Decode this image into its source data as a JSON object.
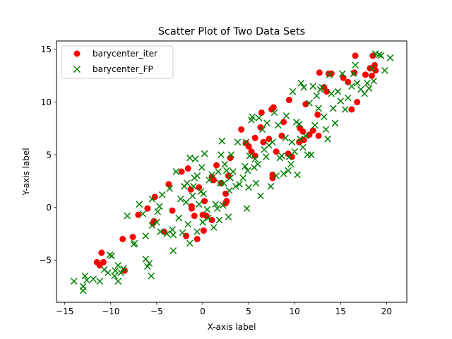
{
  "chart_data": {
    "type": "scatter",
    "title": "Scatter Plot of Two Data Sets",
    "xlabel": "X-axis label",
    "ylabel": "Y-axis label",
    "xlim": [
      -15.9,
      22.2
    ],
    "ylim": [
      -9.0,
      15.8
    ],
    "xticks": [
      -15,
      -10,
      -5,
      0,
      5,
      10,
      15,
      20
    ],
    "yticks": [
      -5,
      0,
      5,
      10,
      15
    ],
    "ytick_labels": [
      "−5",
      "0",
      "5",
      "10",
      "15"
    ],
    "xtick_labels": [
      "−15",
      "−10",
      "−5",
      "0",
      "5",
      "10",
      "15",
      "20"
    ],
    "grid": false,
    "legend_position": "upper-left",
    "series": [
      {
        "name": "barycenter_iter",
        "marker": "circle",
        "color": "#ff0000",
        "points": [
          [
            -11.0,
            -4.3
          ],
          [
            -11.5,
            -5.2
          ],
          [
            -11.2,
            -5.5
          ],
          [
            -10.8,
            -5.2
          ],
          [
            -8.5,
            -6.0
          ],
          [
            -8.7,
            -3.0
          ],
          [
            -7.6,
            -2.8
          ],
          [
            -6.0,
            -0.1
          ],
          [
            -7.0,
            -0.7
          ],
          [
            -5.4,
            -1.5
          ],
          [
            -5.3,
            -1.3
          ],
          [
            -5.2,
            1.0
          ],
          [
            -4.2,
            -2.3
          ],
          [
            -3.7,
            2.2
          ],
          [
            -3.3,
            -0.3
          ],
          [
            -2.3,
            3.4
          ],
          [
            -1.8,
            -2.7
          ],
          [
            -1.6,
            3.7
          ],
          [
            -1.2,
            0.1
          ],
          [
            -1.2,
            -0.1
          ],
          [
            -0.9,
            -0.8
          ],
          [
            -0.6,
            -3.0
          ],
          [
            -1.3,
            1.7
          ],
          [
            -0.4,
            1.9
          ],
          [
            0.0,
            -0.7
          ],
          [
            0.1,
            -2.2
          ],
          [
            0.2,
            0.6
          ],
          [
            0.4,
            -0.8
          ],
          [
            1.0,
            2.9
          ],
          [
            1.2,
            2.6
          ],
          [
            1.5,
            4.0
          ],
          [
            1.0,
            -1.2
          ],
          [
            2.0,
            2.3
          ],
          [
            2.5,
            1.3
          ],
          [
            2.5,
            0.4
          ],
          [
            2.6,
            0.6
          ],
          [
            2.8,
            3.0
          ],
          [
            3.0,
            4.7
          ],
          [
            4.2,
            7.4
          ],
          [
            4.7,
            6.1
          ],
          [
            5.0,
            5.8
          ],
          [
            5.3,
            5.3
          ],
          [
            5.7,
            6.6
          ],
          [
            5.7,
            4.9
          ],
          [
            6.3,
            7.6
          ],
          [
            6.4,
            9.0
          ],
          [
            6.6,
            6.2
          ],
          [
            7.2,
            6.5
          ],
          [
            7.5,
            9.3
          ],
          [
            7.7,
            9.5
          ],
          [
            7.6,
            3.1
          ],
          [
            7.6,
            2.8
          ],
          [
            8.0,
            5.3
          ],
          [
            8.6,
            6.8
          ],
          [
            8.8,
            8.1
          ],
          [
            9.3,
            5.1
          ],
          [
            9.4,
            10.2
          ],
          [
            9.7,
            4.8
          ],
          [
            10.5,
            6.2
          ],
          [
            10.6,
            7.5
          ],
          [
            10.9,
            7.2
          ],
          [
            11.0,
            6.4
          ],
          [
            11.2,
            9.8
          ],
          [
            11.6,
            6.9
          ],
          [
            12.0,
            7.3
          ],
          [
            12.5,
            8.8
          ],
          [
            12.6,
            6.8
          ],
          [
            12.7,
            12.8
          ],
          [
            13.2,
            11.4
          ],
          [
            13.5,
            11.0
          ],
          [
            13.7,
            12.7
          ],
          [
            14.0,
            12.7
          ],
          [
            15.3,
            12.3
          ],
          [
            15.8,
            11.9
          ],
          [
            16.2,
            9.3
          ],
          [
            16.5,
            12.8
          ],
          [
            16.6,
            14.4
          ],
          [
            16.8,
            10.0
          ],
          [
            17.7,
            12.6
          ],
          [
            18.2,
            13.2
          ],
          [
            18.4,
            12.5
          ],
          [
            18.5,
            14.4
          ],
          [
            18.8,
            13.0
          ],
          [
            18.7,
            13.5
          ]
        ]
      },
      {
        "name": "barycenter_FP",
        "marker": "x",
        "color": "#008000",
        "points": [
          [
            -14.0,
            -7.0
          ],
          [
            -13.0,
            -7.5
          ],
          [
            -13.0,
            -7.9
          ],
          [
            -12.8,
            -6.5
          ],
          [
            -12.6,
            -6.9
          ],
          [
            -11.9,
            -6.8
          ],
          [
            -11.2,
            -7.0
          ],
          [
            -10.7,
            -5.9
          ],
          [
            -10.1,
            -4.5
          ],
          [
            -10.3,
            -6.2
          ],
          [
            -9.9,
            -4.6
          ],
          [
            -9.6,
            -6.5
          ],
          [
            -9.5,
            -6.0
          ],
          [
            -9.2,
            -5.5
          ],
          [
            -9.2,
            -7.0
          ],
          [
            -8.9,
            -6.2
          ],
          [
            -8.6,
            -5.8
          ],
          [
            -8.2,
            -0.8
          ],
          [
            -7.5,
            -3.5
          ],
          [
            -7.4,
            -3.4
          ],
          [
            -6.9,
            0.3
          ],
          [
            -6.5,
            -0.6
          ],
          [
            -6.2,
            -2.7
          ],
          [
            -6.2,
            -4.9
          ],
          [
            -6.0,
            -5.6
          ],
          [
            -5.8,
            -5.3
          ],
          [
            -5.6,
            -6.5
          ],
          [
            -5.5,
            0.8
          ],
          [
            -5.5,
            -1.7
          ],
          [
            -5.0,
            -1.4
          ],
          [
            -4.9,
            -0.4
          ],
          [
            -4.7,
            0.1
          ],
          [
            -4.6,
            -2.3
          ],
          [
            -4.4,
            1.2
          ],
          [
            -3.9,
            -2.5
          ],
          [
            -3.6,
            1.8
          ],
          [
            -3.3,
            -2.1
          ],
          [
            -3.2,
            -2.6
          ],
          [
            -3.2,
            -4.1
          ],
          [
            -2.9,
            3.4
          ],
          [
            -2.6,
            -1.0
          ],
          [
            -2.4,
            0.8
          ],
          [
            -2.2,
            -2.4
          ],
          [
            -2.0,
            2.0
          ],
          [
            -1.8,
            0.5
          ],
          [
            -1.7,
            2.3
          ],
          [
            -1.6,
            -1.6
          ],
          [
            -1.4,
            -3.4
          ],
          [
            -1.4,
            4.7
          ],
          [
            -1.1,
            1.1
          ],
          [
            -1.0,
            2.0
          ],
          [
            -0.9,
            2.8
          ],
          [
            -0.8,
            4.6
          ],
          [
            -0.6,
            3.0
          ],
          [
            -0.6,
            -2.3
          ],
          [
            -0.4,
            0.3
          ],
          [
            -0.2,
            1.5
          ],
          [
            -0.1,
            3.8
          ],
          [
            0.0,
            -1.4
          ],
          [
            0.1,
            1.3
          ],
          [
            0.2,
            5.1
          ],
          [
            0.5,
            -0.2
          ],
          [
            0.6,
            -1.0
          ],
          [
            0.7,
            2.6
          ],
          [
            1.0,
            3.1
          ],
          [
            1.2,
            -1.9
          ],
          [
            1.4,
            0.3
          ],
          [
            1.6,
            -0.1
          ],
          [
            1.7,
            3.4
          ],
          [
            1.8,
            -1.2
          ],
          [
            1.9,
            2.3
          ],
          [
            2.0,
            5.0
          ],
          [
            2.1,
            6.3
          ],
          [
            2.2,
            0.2
          ],
          [
            2.3,
            2.3
          ],
          [
            2.4,
            4.1
          ],
          [
            2.6,
            3.5
          ],
          [
            2.8,
            -0.9
          ],
          [
            2.9,
            1.6
          ],
          [
            3.0,
            2.8
          ],
          [
            3.1,
            5.0
          ],
          [
            3.3,
            3.4
          ],
          [
            3.6,
            2.0
          ],
          [
            3.8,
            6.2
          ],
          [
            4.0,
            2.2
          ],
          [
            4.4,
            2.8
          ],
          [
            4.6,
            3.9
          ],
          [
            4.7,
            6.2
          ],
          [
            4.8,
            -0.1
          ],
          [
            4.9,
            3.5
          ],
          [
            5.0,
            1.9
          ],
          [
            5.1,
            4.9
          ],
          [
            5.3,
            8.3
          ],
          [
            5.4,
            8.6
          ],
          [
            5.6,
            3.8
          ],
          [
            5.7,
            4.6
          ],
          [
            5.8,
            2.3
          ],
          [
            6.0,
            4.1
          ],
          [
            6.1,
            8.5
          ],
          [
            6.3,
            1.1
          ],
          [
            6.5,
            7.4
          ],
          [
            6.7,
            5.5
          ],
          [
            6.9,
            4.8
          ],
          [
            7.0,
            8.0
          ],
          [
            7.2,
            5.9
          ],
          [
            7.4,
            2.0
          ],
          [
            7.6,
            6.2
          ],
          [
            7.8,
            9.0
          ],
          [
            8.0,
            3.0
          ],
          [
            8.2,
            7.8
          ],
          [
            8.4,
            4.7
          ],
          [
            8.6,
            4.9
          ],
          [
            8.8,
            3.2
          ],
          [
            9.0,
            6.6
          ],
          [
            9.1,
            8.7
          ],
          [
            9.3,
            3.5
          ],
          [
            9.4,
            4.8
          ],
          [
            9.6,
            4.1
          ],
          [
            9.7,
            6.2
          ],
          [
            9.8,
            11.0
          ],
          [
            10.0,
            5.3
          ],
          [
            10.2,
            8.1
          ],
          [
            10.3,
            3.1
          ],
          [
            10.5,
            7.9
          ],
          [
            10.6,
            6.5
          ],
          [
            10.7,
            11.8
          ],
          [
            10.9,
            5.7
          ],
          [
            11.0,
            11.4
          ],
          [
            11.2,
            6.8
          ],
          [
            11.4,
            5.0
          ],
          [
            11.6,
            9.9
          ],
          [
            11.8,
            5.0
          ],
          [
            12.0,
            11.5
          ],
          [
            12.2,
            7.8
          ],
          [
            12.4,
            10.6
          ],
          [
            12.6,
            9.4
          ],
          [
            12.8,
            11.2
          ],
          [
            13.0,
            11.4
          ],
          [
            13.2,
            8.6
          ],
          [
            13.4,
            7.4
          ],
          [
            13.6,
            6.5
          ],
          [
            13.8,
            12.6
          ],
          [
            14.0,
            10.8
          ],
          [
            14.2,
            9.4
          ],
          [
            14.4,
            8.0
          ],
          [
            14.7,
            11.0
          ],
          [
            15.0,
            10.1
          ],
          [
            15.2,
            12.7
          ],
          [
            15.5,
            9.3
          ],
          [
            15.8,
            10.4
          ],
          [
            16.2,
            11.5
          ],
          [
            16.4,
            12.7
          ],
          [
            16.6,
            13.5
          ],
          [
            16.8,
            11.8
          ],
          [
            17.2,
            11.2
          ],
          [
            17.6,
            10.8
          ],
          [
            17.9,
            11.8
          ],
          [
            18.1,
            11.3
          ],
          [
            18.4,
            13.2
          ],
          [
            18.6,
            12.0
          ],
          [
            18.8,
            14.6
          ],
          [
            19.2,
            14.5
          ],
          [
            19.4,
            14.4
          ],
          [
            19.8,
            13.0
          ],
          [
            20.4,
            14.2
          ]
        ]
      }
    ]
  }
}
